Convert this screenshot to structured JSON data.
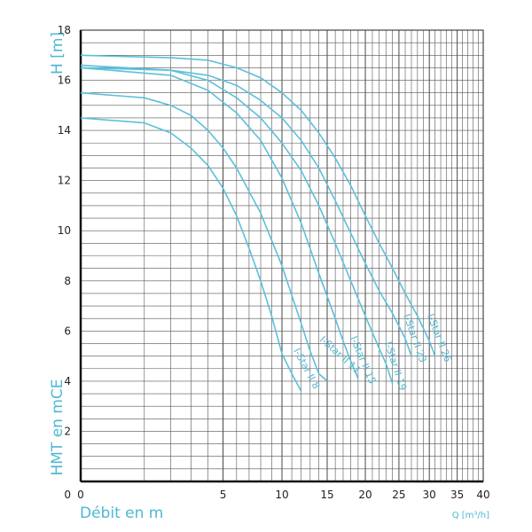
{
  "chart_data": {
    "type": "line",
    "x_scale": "sqrt",
    "y_label": "H [m]",
    "y_label_left": "HMT en mCE",
    "x_label": "Débit en m",
    "x_unit_label": "Q [m³/h]",
    "x_range": [
      0,
      40
    ],
    "y_range": [
      0,
      18
    ],
    "x_ticks": [
      0,
      5,
      10,
      15,
      20,
      25,
      30,
      35,
      40
    ],
    "y_ticks": [
      2,
      4,
      6,
      8,
      10,
      12,
      14,
      16,
      18
    ],
    "grid": true,
    "line_color": "#5bc0dc",
    "series": [
      {
        "name": "I-Star II 8",
        "points": [
          [
            0,
            14.5
          ],
          [
            1,
            14.3
          ],
          [
            2,
            13.9
          ],
          [
            3,
            13.3
          ],
          [
            4,
            12.6
          ],
          [
            5,
            11.7
          ],
          [
            6,
            10.6
          ],
          [
            7,
            9.3
          ],
          [
            8,
            8.0
          ],
          [
            9,
            6.6
          ],
          [
            10,
            5.1
          ],
          [
            11,
            4.3
          ],
          [
            12,
            3.6
          ]
        ]
      },
      {
        "name": "I-Star II 11",
        "points": [
          [
            0,
            15.5
          ],
          [
            1,
            15.3
          ],
          [
            2,
            15.0
          ],
          [
            3,
            14.6
          ],
          [
            4,
            14.0
          ],
          [
            5,
            13.3
          ],
          [
            6,
            12.5
          ],
          [
            8,
            10.7
          ],
          [
            10,
            8.6
          ],
          [
            12,
            6.3
          ],
          [
            13,
            5.2
          ],
          [
            14,
            4.3
          ],
          [
            15,
            4.0
          ]
        ]
      },
      {
        "name": "I-Star II 15",
        "points": [
          [
            0,
            16.5
          ],
          [
            2,
            16.2
          ],
          [
            4,
            15.6
          ],
          [
            6,
            14.7
          ],
          [
            8,
            13.6
          ],
          [
            10,
            12.1
          ],
          [
            12,
            10.3
          ],
          [
            14,
            8.3
          ],
          [
            16,
            6.5
          ],
          [
            17,
            5.6
          ],
          [
            18,
            4.8
          ],
          [
            19,
            4.1
          ]
        ]
      },
      {
        "name": "I-Star II 19",
        "points": [
          [
            0,
            16.6
          ],
          [
            2,
            16.4
          ],
          [
            4,
            16.0
          ],
          [
            6,
            15.3
          ],
          [
            8,
            14.5
          ],
          [
            10,
            13.5
          ],
          [
            12,
            12.4
          ],
          [
            14,
            11.0
          ],
          [
            16,
            9.5
          ],
          [
            18,
            8.0
          ],
          [
            20,
            6.6
          ],
          [
            22,
            5.3
          ],
          [
            23,
            4.7
          ],
          [
            24,
            3.9
          ]
        ]
      },
      {
        "name": "I-Star II 23",
        "points": [
          [
            0,
            16.5
          ],
          [
            2,
            16.4
          ],
          [
            4,
            16.2
          ],
          [
            6,
            15.8
          ],
          [
            8,
            15.2
          ],
          [
            10,
            14.5
          ],
          [
            12,
            13.6
          ],
          [
            14,
            12.5
          ],
          [
            16,
            11.2
          ],
          [
            18,
            9.9
          ],
          [
            20,
            8.7
          ],
          [
            22,
            7.6
          ],
          [
            24,
            6.7
          ],
          [
            25,
            6.2
          ],
          [
            26,
            5.7
          ],
          [
            27,
            5.0
          ]
        ]
      },
      {
        "name": "I-Star II 26",
        "points": [
          [
            0,
            17.0
          ],
          [
            2,
            16.9
          ],
          [
            4,
            16.8
          ],
          [
            6,
            16.5
          ],
          [
            8,
            16.1
          ],
          [
            10,
            15.5
          ],
          [
            12,
            14.8
          ],
          [
            14,
            13.9
          ],
          [
            16,
            12.9
          ],
          [
            18,
            11.8
          ],
          [
            20,
            10.6
          ],
          [
            22,
            9.5
          ],
          [
            24,
            8.5
          ],
          [
            26,
            7.5
          ],
          [
            28,
            6.6
          ],
          [
            30,
            5.6
          ],
          [
            31,
            5.0
          ]
        ]
      }
    ]
  }
}
